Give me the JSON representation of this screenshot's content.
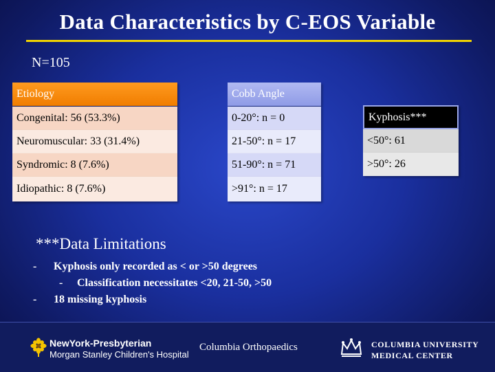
{
  "title": "Data Characteristics by C-EOS Variable",
  "n_label": "N=105",
  "etiology": {
    "header": "Etiology",
    "rows": [
      "Congenital: 56 (53.3%)",
      "Neuromuscular: 33 (31.4%)",
      "Syndromic: 8 (7.6%)",
      "Idiopathic: 8 (7.6%)"
    ]
  },
  "cobb": {
    "header": "Cobb Angle",
    "rows": [
      "0-20°: n = 0",
      "21-50°: n = 17",
      "51-90°: n = 71",
      ">91°: n = 17"
    ]
  },
  "kyphosis": {
    "header": "Kyphosis***",
    "rows": [
      "<50°: 61",
      ">50°: 26"
    ]
  },
  "limitations": {
    "title": "***Data Limitations",
    "items": [
      "Kyphosis only recorded as < or >50 degrees",
      "Classification necessitates <20, 21-50, >50",
      "18 missing kyphosis"
    ],
    "dash": "-"
  },
  "footer": {
    "nyp_line1": "NewYork-Presbyterian",
    "nyp_line2": "Morgan Stanley Children's Hospital",
    "ortho": "Columbia Orthopaedics",
    "cumc_line1": "Columbia University",
    "cumc_line2": "Medical Center",
    "nyp_icon": "flower-icon",
    "cumc_icon": "crown-icon"
  },
  "colors": {
    "background": "#1a2f9e",
    "title_rule": "#f2d400",
    "etiology_header": "#f07d00",
    "cobb_header": "#8f9be6"
  }
}
